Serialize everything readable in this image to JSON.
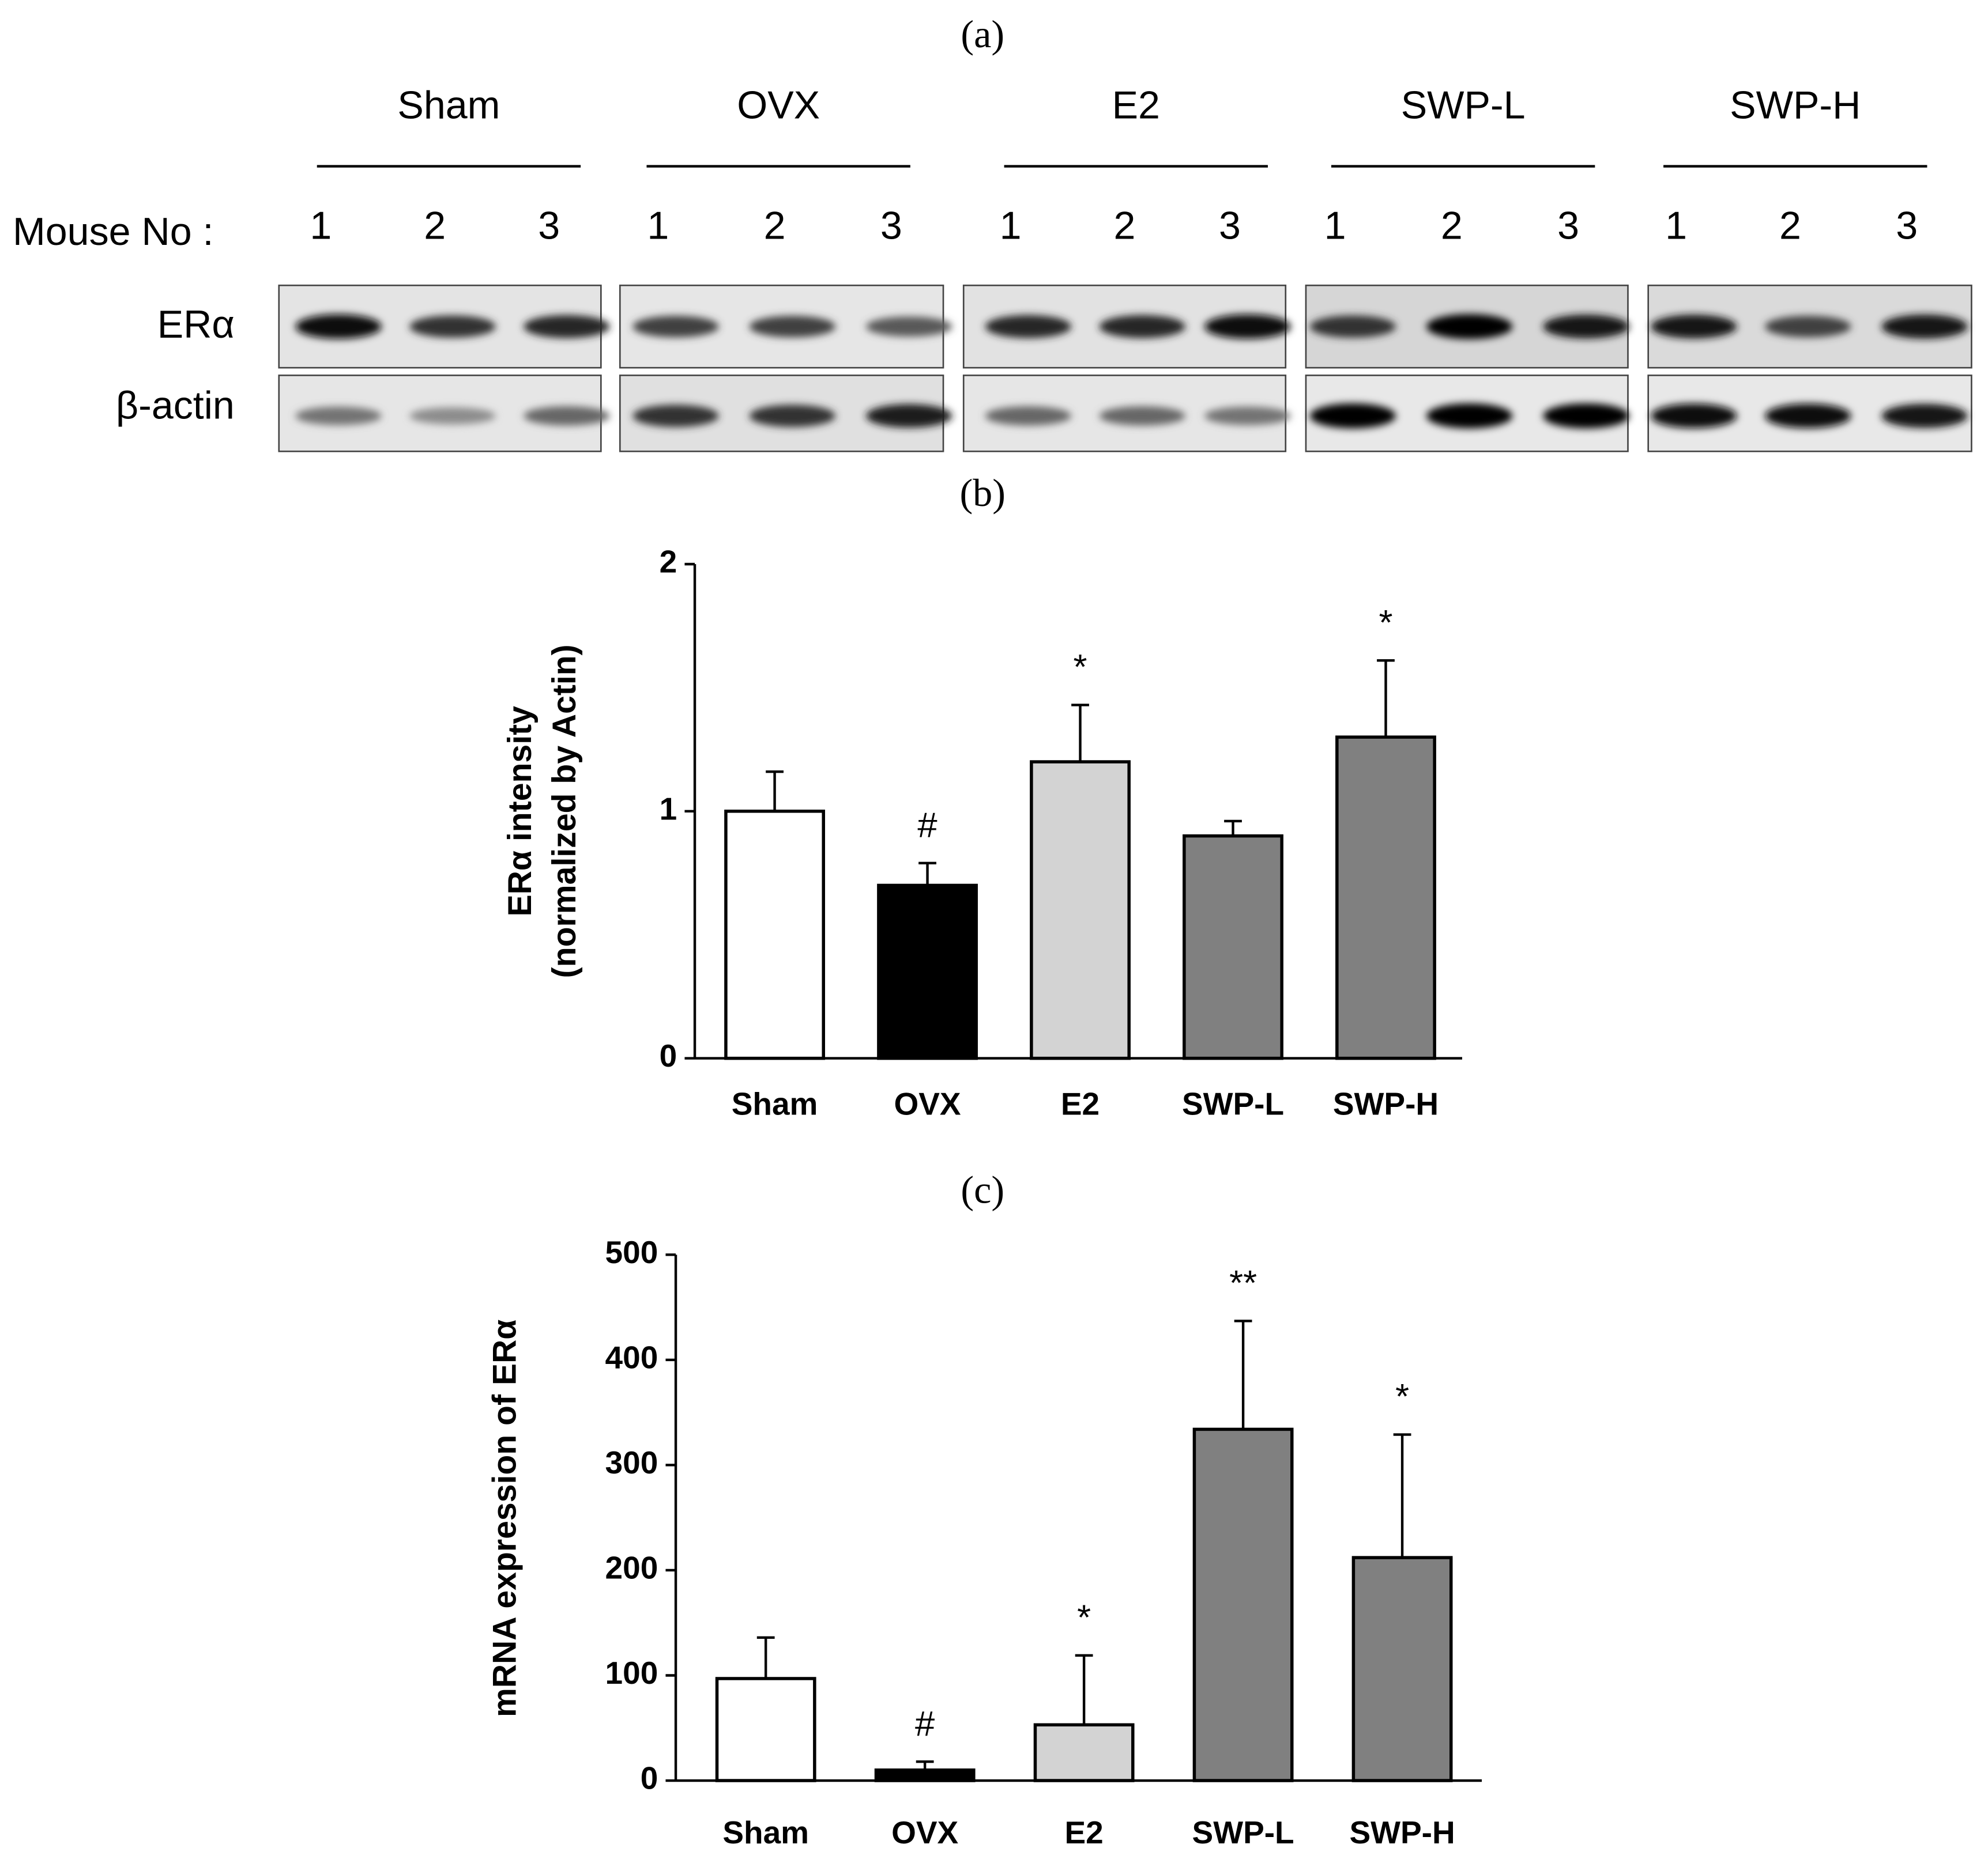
{
  "blot": {
    "label": "(a)",
    "mouse_label": "Mouse No :",
    "rows": [
      "ERα",
      "β-actin"
    ],
    "groups": [
      {
        "name": "Sham",
        "lanes": [
          "1",
          "2",
          "3"
        ]
      },
      {
        "name": "OVX",
        "lanes": [
          "1",
          "2",
          "3"
        ]
      },
      {
        "name": "E2",
        "lanes": [
          "1",
          "2",
          "3"
        ]
      },
      {
        "name": "SWP-L",
        "lanes": [
          "1",
          "2",
          "3"
        ]
      },
      {
        "name": "SWP-H",
        "lanes": [
          "1",
          "2",
          "3"
        ]
      }
    ]
  },
  "chart_data": [
    {
      "type": "bar",
      "title": "(b)",
      "y_label": [
        "ERα intensity",
        "(normalized by Actin)"
      ],
      "categories": [
        "Sham",
        "OVX",
        "E2",
        "SWP-L",
        "SWP-H"
      ],
      "values": [
        1.0,
        0.7,
        1.2,
        0.9,
        1.3
      ],
      "errors": [
        0.16,
        0.09,
        0.23,
        0.06,
        0.31
      ],
      "annotations": [
        null,
        "#",
        "*",
        null,
        "*"
      ],
      "colors": [
        "#ffffff",
        "#000000",
        "#d3d3d3",
        "#808080",
        "#808080"
      ],
      "ylim": [
        0,
        2
      ],
      "yticks": [
        0,
        1,
        2
      ],
      "grid": false
    },
    {
      "type": "bar",
      "title": "(c)",
      "y_label": [
        "mRNA expression of ERα"
      ],
      "categories": [
        "Sham",
        "OVX",
        "E2",
        "SWP-L",
        "SWP-H"
      ],
      "values": [
        97,
        10,
        53,
        334,
        212
      ],
      "errors": [
        39,
        8,
        66,
        103,
        117
      ],
      "annotations": [
        null,
        "#",
        "*",
        "**",
        "*"
      ],
      "colors": [
        "#ffffff",
        "#000000",
        "#d3d3d3",
        "#808080",
        "#808080"
      ],
      "ylim": [
        0,
        500
      ],
      "yticks": [
        0,
        100,
        200,
        300,
        400,
        500
      ],
      "grid": false
    }
  ]
}
